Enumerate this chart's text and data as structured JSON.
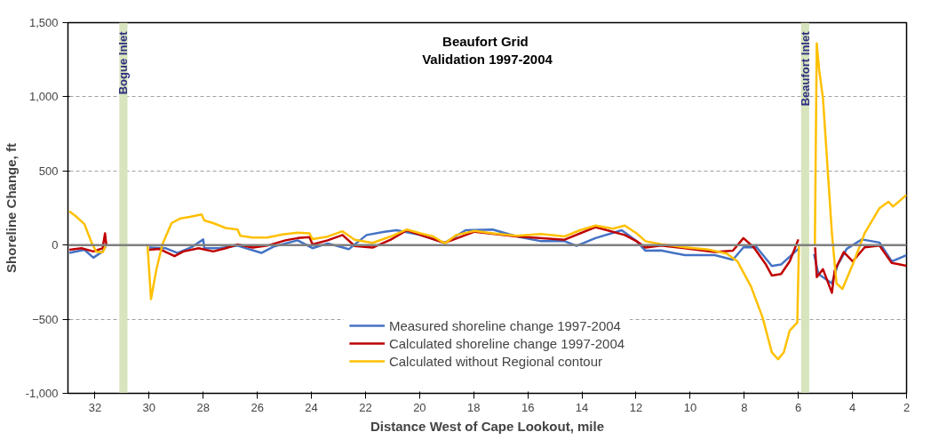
{
  "chart_data": {
    "type": "line",
    "title": "Beaufort  Grid\nValidation 1997-2004",
    "xlabel": "Distance West of Cape Lookout, mile",
    "ylabel": "Shoreline Change, ft",
    "xlim": [
      33,
      2
    ],
    "xticks": [
      32,
      30,
      28,
      26,
      24,
      22,
      20,
      18,
      16,
      14,
      12,
      10,
      8,
      6,
      4,
      2
    ],
    "ylim": [
      -1000,
      1500
    ],
    "yticks": [
      {
        "value": -1000,
        "label": "-1,000"
      },
      -500,
      0,
      500,
      {
        "value": 1000,
        "label": "1,000"
      },
      {
        "value": 1500,
        "label": "1,500"
      }
    ],
    "grid": "y",
    "legend": "bottom",
    "line_style": "solid",
    "bands": [
      {
        "axis": "x",
        "from": 31.1,
        "to": 30.8,
        "label": "Bogue Inlet",
        "color": "#d7e4bd"
      },
      {
        "axis": "x",
        "from": 5.9,
        "to": 5.6,
        "label": "Beaufort Inlet",
        "color": "#d7e4bd"
      }
    ],
    "ref_lines": [
      {
        "axis": "y",
        "value": 0,
        "color": "#808080"
      }
    ],
    "series": [
      {
        "name": "Measured shoreline change 1997-2004",
        "color": "#4472c4",
        "x": [
          32.95,
          32.39,
          32.06,
          31.72,
          31.61,
          null,
          30.0,
          29.4,
          28.95,
          28.4,
          28.0,
          27.96,
          27.4,
          26.73,
          25.85,
          25.41,
          24.51,
          23.96,
          23.4,
          22.74,
          22.62,
          21.96,
          21.3,
          20.85,
          19.97,
          19.07,
          18.3,
          17.3,
          16.41,
          15.51,
          14.64,
          14.2,
          13.5,
          12.53,
          11.98,
          11.65,
          11.08,
          10.2,
          9.09,
          8.42,
          8.03,
          7.54,
          6.98,
          6.64,
          6.0,
          null,
          5.42,
          5.26,
          4.76,
          4.54,
          4.21,
          3.65,
          3.0,
          2.55,
          2.0
        ],
        "values": [
          -53,
          -32,
          -85,
          -43,
          -11,
          null,
          -17,
          -21,
          -53,
          -11,
          38,
          -21,
          -21,
          -4,
          -53,
          -11,
          32,
          -21,
          11,
          -21,
          -28,
          68,
          90,
          100,
          68,
          15,
          100,
          105,
          58,
          26,
          26,
          -6,
          47,
          100,
          26,
          -38,
          -36,
          -68,
          -68,
          -99,
          -15,
          -15,
          -141,
          -131,
          -25,
          null,
          -60,
          -195,
          -258,
          -131,
          -25,
          38,
          17,
          -110,
          -68
        ]
      },
      {
        "name": "Calculated shoreline change 1997-2004",
        "color": "#c00000",
        "x": [
          32.95,
          32.5,
          32.06,
          31.72,
          31.63,
          31.58,
          null,
          30.0,
          29.62,
          29.06,
          28.73,
          28.17,
          27.63,
          27.17,
          26.73,
          26.17,
          25.63,
          24.96,
          24.51,
          24.07,
          23.96,
          23.4,
          22.85,
          22.4,
          21.74,
          21.07,
          20.47,
          19.97,
          19.07,
          17.97,
          16.41,
          14.64,
          13.5,
          12.42,
          11.98,
          11.65,
          11.08,
          10.2,
          9.09,
          8.42,
          8.03,
          7.65,
          7.2,
          6.98,
          6.64,
          6.32,
          6.0,
          null,
          5.38,
          5.32,
          5.09,
          4.76,
          4.66,
          4.32,
          3.99,
          3.55,
          3.0,
          2.55,
          2.0
        ],
        "values": [
          -32,
          -21,
          -43,
          -21,
          79,
          0,
          null,
          -32,
          -26,
          -75,
          -43,
          -21,
          -43,
          -21,
          4,
          -17,
          -4,
          32,
          47,
          53,
          4,
          32,
          68,
          -6,
          -17,
          36,
          100,
          68,
          15,
          90,
          58,
          36,
          121,
          68,
          26,
          -17,
          -4,
          -21,
          -47,
          -38,
          47,
          -15,
          -131,
          -205,
          -195,
          -110,
          38,
          null,
          -15,
          -216,
          -163,
          -322,
          -173,
          -47,
          -110,
          -15,
          -4,
          -120,
          -140
        ]
      },
      {
        "name": "Calculated without Regional contour",
        "color": "#ffc000",
        "x": [
          32.95,
          32.72,
          32.39,
          32.11,
          31.95,
          31.72,
          31.61,
          null,
          30.06,
          29.93,
          29.73,
          29.5,
          29.17,
          28.84,
          28.5,
          28.06,
          27.96,
          27.63,
          27.17,
          26.73,
          26.63,
          26.17,
          25.63,
          25.07,
          24.51,
          24.07,
          23.96,
          23.4,
          22.85,
          22.4,
          21.74,
          21.07,
          20.47,
          19.97,
          19.5,
          19.07,
          18.64,
          17.97,
          17.3,
          16.41,
          15.51,
          14.64,
          14.07,
          13.5,
          12.85,
          12.42,
          11.98,
          11.65,
          11.08,
          10.2,
          9.32,
          8.65,
          8.25,
          7.75,
          7.32,
          6.98,
          6.75,
          6.54,
          6.32,
          6.04,
          5.98,
          null,
          5.39,
          5.32,
          5.23,
          5.09,
          4.76,
          4.59,
          4.37,
          3.99,
          3.55,
          3.0,
          2.67,
          2.5,
          2.0
        ],
        "values": [
          228,
          196,
          141,
          9,
          -44,
          -50,
          -7,
          null,
          0,
          -364,
          -164,
          9,
          148,
          180,
          190,
          207,
          166,
          148,
          115,
          104,
          62,
          51,
          51,
          72,
          83,
          79,
          40,
          57,
          93,
          36,
          15,
          58,
          105,
          79,
          58,
          11,
          68,
          96,
          79,
          62,
          75,
          58,
          100,
          132,
          111,
          132,
          79,
          26,
          6,
          -15,
          -30,
          -57,
          -110,
          -280,
          -490,
          -724,
          -770,
          -724,
          -576,
          -523,
          -4,
          null,
          -4,
          1360,
          1180,
          990,
          80,
          -258,
          -296,
          -131,
          80,
          249,
          292,
          260,
          339
        ]
      }
    ]
  }
}
